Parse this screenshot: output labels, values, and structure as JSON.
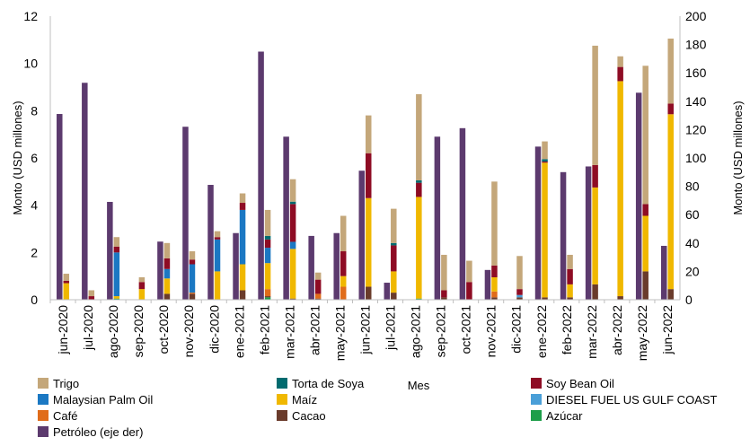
{
  "chart_data": {
    "type": "bar",
    "stacked": true,
    "categories": [
      "jun-2020",
      "jul-2020",
      "ago-2020",
      "sep-2020",
      "oct-2020",
      "nov-2020",
      "dic-2020",
      "ene-2021",
      "feb-2021",
      "mar-2021",
      "abr-2021",
      "may-2021",
      "jun-2021",
      "jul-2021",
      "ago-2021",
      "sep-2021",
      "oct-2021",
      "nov-2021",
      "dic-2021",
      "ene-2022",
      "feb-2022",
      "mar-2022",
      "abr-2022",
      "may-2022",
      "jun-2022"
    ],
    "xlabel": "Mes",
    "ylabel": "Monto (USD millones)",
    "y2label": "Monto (USD millones)",
    "ylim": [
      0,
      12
    ],
    "y2lim": [
      0,
      200
    ],
    "yticks": [
      0,
      2,
      4,
      6,
      8,
      10,
      12
    ],
    "y2ticks": [
      0,
      20,
      40,
      60,
      80,
      100,
      120,
      140,
      160,
      180,
      200
    ],
    "grid": false,
    "legend_position": "bottom",
    "legend_order": [
      "Trigo",
      "Torta de Soya",
      "Soy Bean Oil",
      "Malaysian Palm Oil",
      "Maíz",
      "DIESEL FUEL US GULF COAST",
      "Café",
      "Cacao",
      "Azúcar",
      "Petróleo (eje der)"
    ],
    "series": [
      {
        "name": "Azúcar",
        "color": "#1e9e4a",
        "axis": "left",
        "values": [
          0,
          0,
          0.05,
          0,
          0,
          0,
          0,
          0,
          0.1,
          0,
          0,
          0,
          0,
          0,
          0.05,
          0,
          0,
          0,
          0,
          0,
          0,
          0,
          0,
          0,
          0
        ]
      },
      {
        "name": "Cacao",
        "color": "#6a3b2b",
        "axis": "left",
        "values": [
          0,
          0,
          0,
          0,
          0.25,
          0.25,
          0,
          0.4,
          0.05,
          0.05,
          0.05,
          0,
          0.55,
          0.3,
          0,
          0.1,
          0,
          0.1,
          0.1,
          0.1,
          0.1,
          0.65,
          0.15,
          1.2,
          0.45
        ]
      },
      {
        "name": "Café",
        "color": "#e06c1a",
        "axis": "left",
        "values": [
          0,
          0,
          0,
          0,
          0,
          0.05,
          0,
          0,
          0.3,
          0,
          0.2,
          0.55,
          0,
          0,
          0,
          0,
          0,
          0.25,
          0,
          0,
          0,
          0,
          0,
          0,
          0
        ]
      },
      {
        "name": "DIESEL FUEL US GULF COAST",
        "color": "#4a9fd8",
        "axis": "left",
        "values": [
          0,
          0,
          0,
          0,
          0,
          0,
          0,
          0,
          0,
          0,
          0,
          0,
          0,
          0,
          0,
          0,
          0,
          0,
          0.1,
          0,
          0,
          0,
          0,
          0,
          0
        ]
      },
      {
        "name": "Maíz",
        "color": "#f0b800",
        "axis": "left",
        "values": [
          0.7,
          0,
          0.1,
          0.45,
          0.65,
          0,
          1.2,
          1.1,
          1.1,
          2.1,
          0,
          0.45,
          3.75,
          0.9,
          4.3,
          0,
          0,
          0.6,
          0,
          5.7,
          0.55,
          4.1,
          9.1,
          2.35,
          7.4
        ]
      },
      {
        "name": "Malaysian Palm Oil",
        "color": "#1b78c3",
        "axis": "left",
        "values": [
          0,
          0,
          1.85,
          0,
          0.4,
          1.2,
          1.35,
          2.3,
          0.65,
          0.3,
          0,
          0,
          0,
          0,
          0,
          0,
          0,
          0,
          0,
          0,
          0,
          0,
          0,
          0,
          0
        ]
      },
      {
        "name": "Soy Bean Oil",
        "color": "#8e0c24",
        "axis": "left",
        "values": [
          0.1,
          0.15,
          0.25,
          0.3,
          0.45,
          0.2,
          0.1,
          0.3,
          0.35,
          1.6,
          0.6,
          1.05,
          1.9,
          1.1,
          0.6,
          0.3,
          0.75,
          0.5,
          0.25,
          0.05,
          0.65,
          0.95,
          0.6,
          0.5,
          0.45
        ]
      },
      {
        "name": "Torta de Soya",
        "color": "#006b6f",
        "axis": "left",
        "values": [
          0,
          0,
          0,
          0,
          0,
          0,
          0,
          0,
          0.15,
          0.1,
          0,
          0,
          0,
          0.1,
          0.1,
          0,
          0,
          0,
          0,
          0.1,
          0,
          0,
          0,
          0,
          0
        ]
      },
      {
        "name": "Trigo",
        "color": "#c4a77a",
        "axis": "left",
        "values": [
          0.3,
          0.25,
          0.4,
          0.2,
          0.65,
          0.35,
          0.25,
          0.4,
          1.1,
          0.95,
          0.3,
          1.5,
          1.6,
          1.45,
          3.65,
          1.5,
          0.9,
          3.55,
          1.4,
          0.75,
          0.6,
          5.05,
          0.45,
          5.85,
          2.75
        ]
      },
      {
        "name": "Petróleo (eje der)",
        "color": "#5c3a6e",
        "axis": "right",
        "values": [
          131,
          153,
          69,
          0,
          41,
          122,
          81,
          47,
          175,
          115,
          45,
          47,
          91,
          12,
          0,
          115,
          121,
          21,
          0,
          108,
          90,
          94,
          0,
          146,
          38
        ]
      }
    ]
  }
}
